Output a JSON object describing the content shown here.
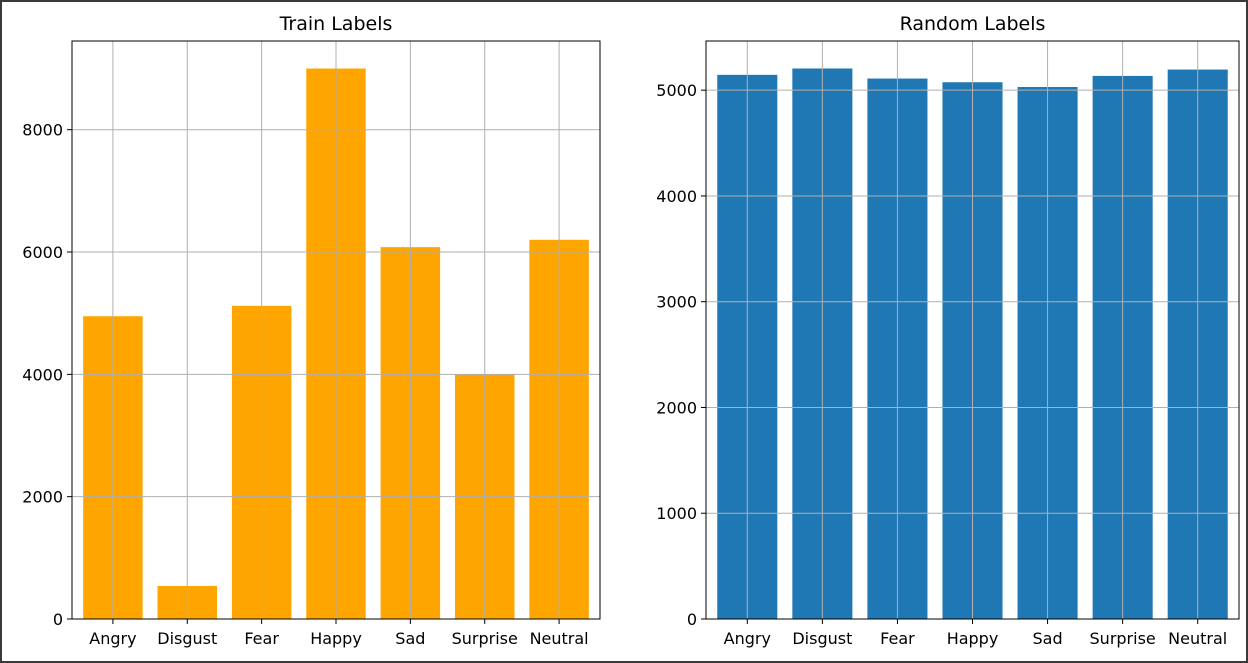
{
  "chart_data": [
    {
      "type": "bar",
      "title": "Train Labels",
      "xlabel": "",
      "ylabel": "",
      "categories": [
        "Angry",
        "Disgust",
        "Fear",
        "Happy",
        "Sad",
        "Surprise",
        "Neutral"
      ],
      "values": [
        4950,
        540,
        5120,
        9000,
        6080,
        4000,
        6200
      ],
      "color": "#ffa500",
      "ylim": [
        0,
        9450
      ],
      "yticks": [
        0,
        2000,
        4000,
        6000,
        8000
      ],
      "grid": true
    },
    {
      "type": "bar",
      "title": "Random Labels",
      "xlabel": "",
      "ylabel": "",
      "categories": [
        "Angry",
        "Disgust",
        "Fear",
        "Happy",
        "Sad",
        "Surprise",
        "Neutral"
      ],
      "values": [
        5145,
        5205,
        5110,
        5075,
        5030,
        5135,
        5195
      ],
      "color": "#1f77b4",
      "ylim": [
        0,
        5465
      ],
      "yticks": [
        0,
        1000,
        2000,
        3000,
        4000,
        5000
      ],
      "grid": true
    }
  ]
}
